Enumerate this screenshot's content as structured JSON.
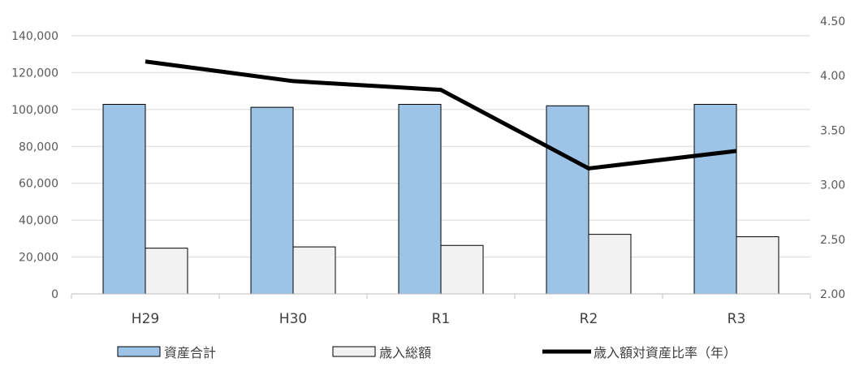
{
  "chart_data": {
    "type": "bar",
    "categories": [
      "H29",
      "H30",
      "R1",
      "R2",
      "R3"
    ],
    "series": [
      {
        "name": "資産合計",
        "type": "bar",
        "axis": "left",
        "color": "#9dc3e6",
        "values": [
          102800,
          101200,
          102800,
          102000,
          102800
        ]
      },
      {
        "name": "歳入総額",
        "type": "bar",
        "axis": "left",
        "color": "#f2f2f2",
        "values": [
          24800,
          25500,
          26300,
          32300,
          31000
        ]
      },
      {
        "name": "歳入額対資産比率（年）",
        "type": "line",
        "axis": "right",
        "color": "#000000",
        "values": [
          4.13,
          3.95,
          3.87,
          3.15,
          3.31
        ]
      }
    ],
    "y_left": {
      "min": 0,
      "max": 140000,
      "step": 20000,
      "tick_labels": [
        "0",
        "20,000",
        "40,000",
        "60,000",
        "80,000",
        "100,000",
        "120,000",
        "140,000"
      ]
    },
    "y_right": {
      "min": 2.0,
      "max": 4.5,
      "step": 0.5,
      "tick_labels": [
        "2.00",
        "2.50",
        "3.00",
        "3.50",
        "4.00",
        "4.50"
      ]
    },
    "grid": true,
    "legend_position": "bottom"
  }
}
